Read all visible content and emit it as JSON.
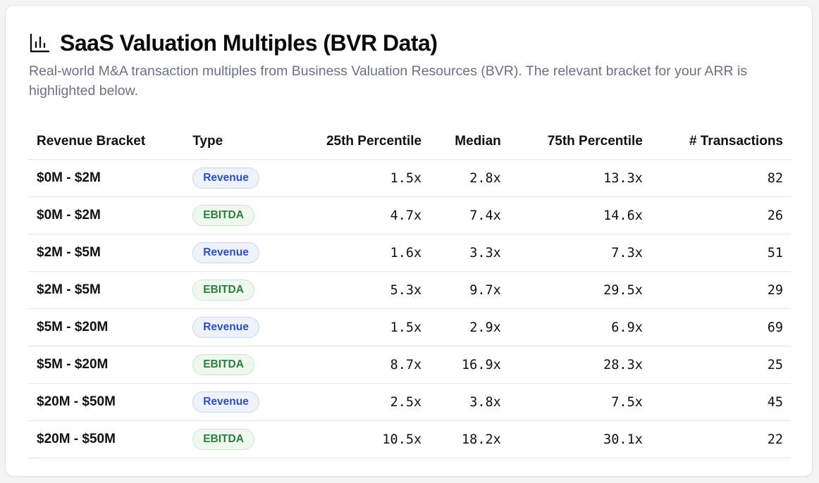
{
  "header": {
    "icon": "bar-chart-icon",
    "title": "SaaS Valuation Multiples (BVR Data)",
    "subtitle": "Real-world M&A transaction multiples from Business Valuation Resources (BVR). The relevant bracket for your ARR is highlighted below."
  },
  "table": {
    "columns": [
      "Revenue Bracket",
      "Type",
      "25th Percentile",
      "Median",
      "75th Percentile",
      "# Transactions"
    ],
    "rows": [
      {
        "bracket": "$0M - $2M",
        "type": "Revenue",
        "p25": "1.5x",
        "median": "2.8x",
        "p75": "13.3x",
        "transactions": "82"
      },
      {
        "bracket": "$0M - $2M",
        "type": "EBITDA",
        "p25": "4.7x",
        "median": "7.4x",
        "p75": "14.6x",
        "transactions": "26"
      },
      {
        "bracket": "$2M - $5M",
        "type": "Revenue",
        "p25": "1.6x",
        "median": "3.3x",
        "p75": "7.3x",
        "transactions": "51"
      },
      {
        "bracket": "$2M - $5M",
        "type": "EBITDA",
        "p25": "5.3x",
        "median": "9.7x",
        "p75": "29.5x",
        "transactions": "29"
      },
      {
        "bracket": "$5M - $20M",
        "type": "Revenue",
        "p25": "1.5x",
        "median": "2.9x",
        "p75": "6.9x",
        "transactions": "69"
      },
      {
        "bracket": "$5M - $20M",
        "type": "EBITDA",
        "p25": "8.7x",
        "median": "16.9x",
        "p75": "28.3x",
        "transactions": "25"
      },
      {
        "bracket": "$20M - $50M",
        "type": "Revenue",
        "p25": "2.5x",
        "median": "3.8x",
        "p75": "7.5x",
        "transactions": "45"
      },
      {
        "bracket": "$20M - $50M",
        "type": "EBITDA",
        "p25": "10.5x",
        "median": "18.2x",
        "p75": "30.1x",
        "transactions": "22"
      }
    ]
  },
  "colors": {
    "revenue_badge_text": "#2f4fc1",
    "revenue_badge_bg": "#eef2fb",
    "ebitda_badge_text": "#2f7d3b",
    "ebitda_badge_bg": "#eef8ef"
  }
}
